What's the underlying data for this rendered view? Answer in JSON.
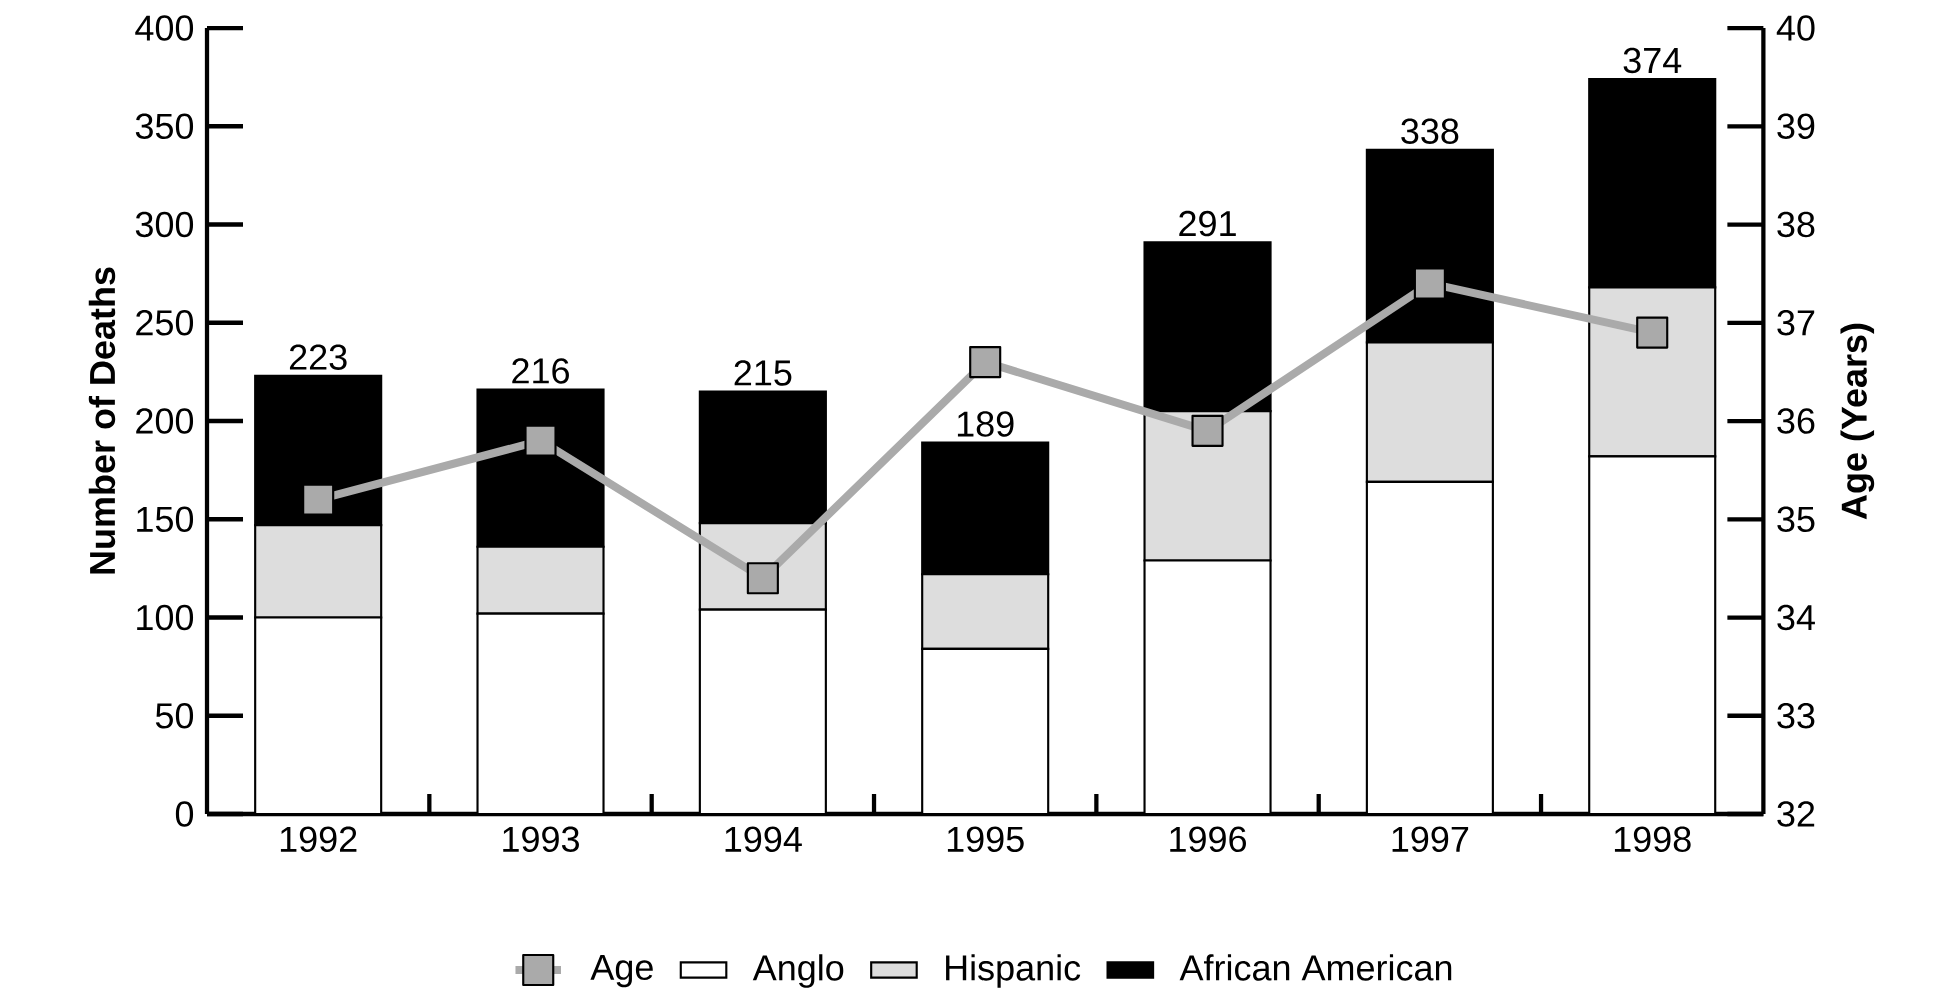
{
  "chart_data": {
    "type": "bar",
    "stacked": true,
    "categories": [
      "1992",
      "1993",
      "1994",
      "1995",
      "1996",
      "1997",
      "1998"
    ],
    "series": [
      {
        "name": "Anglo",
        "color": "#ffffff",
        "values": [
          100,
          102,
          104,
          84,
          129,
          169,
          182
        ]
      },
      {
        "name": "Hispanic",
        "color": "#dddddd",
        "values": [
          47,
          34,
          44,
          38,
          76,
          71,
          86
        ]
      },
      {
        "name": "African American",
        "color": "#000000",
        "values": [
          76,
          80,
          67,
          67,
          86,
          98,
          106
        ]
      },
      {
        "name": "Age",
        "type": "line",
        "axis": "y2",
        "color": "#aaaaaa",
        "values": [
          35.2,
          35.8,
          34.4,
          36.6,
          35.9,
          37.4,
          36.9
        ]
      }
    ],
    "totals": [
      "223",
      "216",
      "215",
      "189",
      "291",
      "338",
      "374"
    ],
    "ylabel": "Number of Deaths",
    "y2label": "Age (Years)",
    "ylim": [
      0,
      400
    ],
    "yticks": [
      0,
      50,
      100,
      150,
      200,
      250,
      300,
      350,
      400
    ],
    "y2lim": [
      32,
      40
    ],
    "y2ticks": [
      32,
      33,
      34,
      35,
      36,
      37,
      38,
      39,
      40
    ],
    "legend": "bottom",
    "marker": "square",
    "line_style": "solid",
    "grid": false
  }
}
